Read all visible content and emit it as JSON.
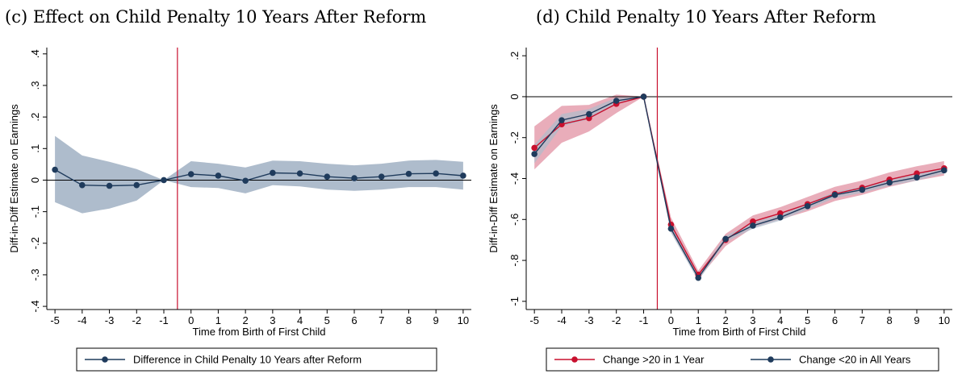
{
  "chart_data": [
    {
      "type": "line",
      "title": "(c) Effect on Child Penalty 10 Years After Reform",
      "xlabel": "Time from Birth of First Child",
      "ylabel": "Diff-in-Diff Estimate on Earnings",
      "x": [
        -5,
        -4,
        -3,
        -2,
        -1,
        0,
        1,
        2,
        3,
        4,
        5,
        6,
        7,
        8,
        9,
        10
      ],
      "x_tick_labels": [
        "-5",
        "-4",
        "-3",
        "-2",
        "-1",
        "0",
        "1",
        "2",
        "3",
        "4",
        "5",
        "6",
        "7",
        "8",
        "9",
        "10"
      ],
      "xlim": [
        -5.3,
        10.3
      ],
      "ylim": [
        -0.41,
        0.42
      ],
      "y_ticks": [
        -0.4,
        -0.3,
        -0.2,
        -0.1,
        0,
        0.1,
        0.2,
        0.3,
        0.4
      ],
      "y_tick_labels": [
        "-.4",
        "-.3",
        "-.2",
        "-.1",
        "0",
        ".1",
        ".2",
        ".3",
        ".4"
      ],
      "reference_vline_x": -0.5,
      "reference_hline_y": 0,
      "grid": false,
      "legend_position": "bottom",
      "series": [
        {
          "name": "Difference in Child Penalty 10 Years after Reform",
          "color": "#1f3b5c",
          "band_color": "#aebccc",
          "values": [
            0.033,
            -0.016,
            -0.018,
            -0.016,
            0.0,
            0.019,
            0.014,
            -0.002,
            0.023,
            0.021,
            0.011,
            0.006,
            0.011,
            0.02,
            0.021,
            0.014
          ],
          "ci_low": [
            -0.07,
            -0.105,
            -0.09,
            -0.065,
            0.0,
            -0.022,
            -0.025,
            -0.042,
            -0.016,
            -0.02,
            -0.03,
            -0.034,
            -0.03,
            -0.022,
            -0.022,
            -0.03
          ],
          "ci_high": [
            0.14,
            0.078,
            0.058,
            0.035,
            0.0,
            0.06,
            0.052,
            0.04,
            0.062,
            0.06,
            0.052,
            0.047,
            0.052,
            0.062,
            0.064,
            0.058
          ]
        }
      ]
    },
    {
      "type": "line",
      "title": "(d) Child Penalty 10 Years After Reform",
      "xlabel": "Time from Birth of First Child",
      "ylabel": "Diff-in-Diff Estimate on Earnings",
      "x": [
        -5,
        -4,
        -3,
        -2,
        -1,
        0,
        1,
        2,
        3,
        4,
        5,
        6,
        7,
        8,
        9,
        10
      ],
      "x_tick_labels": [
        "-5",
        "-4",
        "-3",
        "-2",
        "-1",
        "0",
        "1",
        "2",
        "3",
        "4",
        "5",
        "6",
        "7",
        "8",
        "9",
        "10"
      ],
      "xlim": [
        -5.3,
        10.3
      ],
      "ylim": [
        -1.04,
        0.24
      ],
      "y_ticks": [
        -1,
        -0.8,
        -0.6,
        -0.4,
        -0.2,
        0,
        0.2
      ],
      "y_tick_labels": [
        "-1",
        "-.8",
        "-.6",
        "-.4",
        "-.2",
        "0",
        ".2"
      ],
      "reference_vline_x": -0.5,
      "reference_hline_y": 0,
      "grid": false,
      "legend_position": "bottom",
      "series": [
        {
          "name": "Change >20 in 1 Year",
          "color": "#c8102e",
          "band_color": "#e08a9c",
          "values": [
            -0.25,
            -0.135,
            -0.105,
            -0.035,
            0.0,
            -0.625,
            -0.87,
            -0.7,
            -0.61,
            -0.57,
            -0.525,
            -0.475,
            -0.445,
            -0.405,
            -0.375,
            -0.35
          ],
          "ci_low": [
            -0.355,
            -0.225,
            -0.17,
            -0.08,
            0.0,
            -0.66,
            -0.89,
            -0.73,
            -0.64,
            -0.6,
            -0.56,
            -0.51,
            -0.48,
            -0.44,
            -0.41,
            -0.385
          ],
          "ci_high": [
            -0.145,
            -0.045,
            -0.04,
            0.01,
            0.0,
            -0.59,
            -0.85,
            -0.67,
            -0.58,
            -0.54,
            -0.49,
            -0.44,
            -0.41,
            -0.37,
            -0.34,
            -0.315
          ]
        },
        {
          "name": "Change <20 in All Years",
          "color": "#1f3b5c",
          "band_color": "#aebccc",
          "values": [
            -0.28,
            -0.115,
            -0.085,
            -0.02,
            0.0,
            -0.645,
            -0.885,
            -0.695,
            -0.63,
            -0.59,
            -0.535,
            -0.48,
            -0.455,
            -0.42,
            -0.395,
            -0.36
          ],
          "ci_low": [
            -0.325,
            -0.145,
            -0.11,
            -0.035,
            0.0,
            -0.665,
            -0.9,
            -0.71,
            -0.645,
            -0.605,
            -0.55,
            -0.495,
            -0.47,
            -0.435,
            -0.41,
            -0.375
          ],
          "ci_high": [
            -0.235,
            -0.085,
            -0.06,
            -0.005,
            0.0,
            -0.625,
            -0.87,
            -0.68,
            -0.615,
            -0.575,
            -0.52,
            -0.465,
            -0.44,
            -0.405,
            -0.38,
            -0.345
          ]
        }
      ]
    }
  ]
}
